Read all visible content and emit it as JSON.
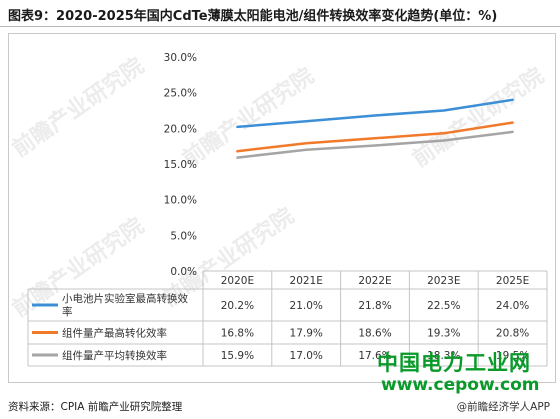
{
  "header": {
    "title": "图表9：2020-2025年国内CdTe薄膜太阳能电池/组件转换效率变化趋势(单位：%)"
  },
  "footer": {
    "source": "资料来源：CPIA 前瞻产业研究院整理",
    "app_credit": "@前瞻经济学人APP"
  },
  "watermark": {
    "brand": "中国电力工业网",
    "url": "www.cepow.com",
    "institute": "前瞻产业研究院"
  },
  "colors": {
    "series1": "#3c8fd6",
    "series2": "#f0792a",
    "series3": "#a5a5a5",
    "brand_green": "#0a9a2a"
  },
  "chart_data": {
    "type": "line",
    "title": "图表9：2020-2025年国内CdTe薄膜太阳能电池/组件转换效率变化趋势(单位：%)",
    "categories": [
      "2020E",
      "2021E",
      "2022E",
      "2023E",
      "2025E"
    ],
    "y_ticks": [
      "30.0%",
      "25.0%",
      "20.0%",
      "15.0%",
      "10.0%",
      "5.0%",
      "0.0%"
    ],
    "ylim": [
      0,
      30
    ],
    "grid": false,
    "legend": "data-table-left",
    "series": [
      {
        "name": "小电池片实验室最高转换效率",
        "values": [
          20.2,
          21.0,
          21.8,
          22.5,
          24.0
        ],
        "labels": [
          "20.2%",
          "21.0%",
          "21.8%",
          "22.5%",
          "24.0%"
        ]
      },
      {
        "name": "组件量产最高转化效率",
        "values": [
          16.8,
          17.9,
          18.6,
          19.3,
          20.8
        ],
        "labels": [
          "16.8%",
          "17.9%",
          "18.6%",
          "19.3%",
          "20.8%"
        ]
      },
      {
        "name": "组件量产平均转换效率",
        "values": [
          15.9,
          17.0,
          17.6,
          18.3,
          19.5
        ],
        "labels": [
          "15.9%",
          "17.0%",
          "17.6%",
          "18.3%",
          "19.5%"
        ]
      }
    ]
  }
}
